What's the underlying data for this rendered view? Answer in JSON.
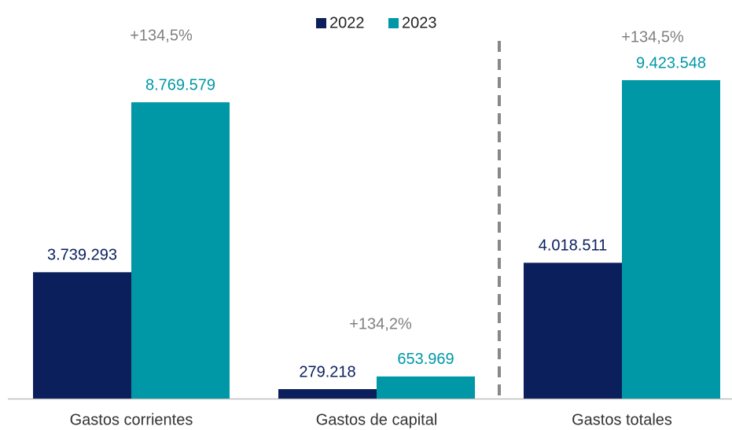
{
  "chart_data": {
    "type": "bar",
    "categories": [
      "Gastos corrientes",
      "Gastos de capital",
      "Gastos totales"
    ],
    "series": [
      {
        "name": "2022",
        "color": "#0b1f5c",
        "values": [
          3739293,
          279218,
          4018511
        ],
        "value_labels": [
          "3.739.293",
          "279.218",
          "4.018.511"
        ]
      },
      {
        "name": "2023",
        "color": "#0097a7",
        "values": [
          8769579,
          653969,
          9423548
        ],
        "value_labels": [
          "8.769.579",
          "653.969",
          "9.423.548"
        ]
      }
    ],
    "annotations": [
      "+134,5%",
      "+134,2%",
      "+134,5%"
    ],
    "legend": "top"
  }
}
